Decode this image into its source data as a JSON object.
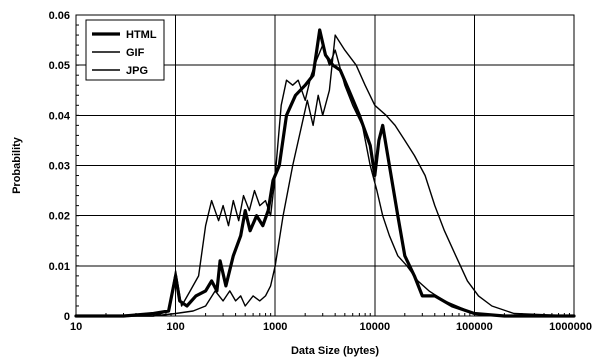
{
  "chart_data": {
    "type": "line",
    "title": "",
    "xlabel": "Data Size (bytes)",
    "ylabel": "Probability",
    "x_scale": "log",
    "xlim": [
      10,
      1000000
    ],
    "ylim": [
      0,
      0.06
    ],
    "x_ticks": [
      "10",
      "100",
      "1000",
      "10000",
      "100000",
      "1000000"
    ],
    "y_ticks": [
      "0",
      "0.01",
      "0.02",
      "0.03",
      "0.04",
      "0.05",
      "0.06"
    ],
    "grid": true,
    "legend_position": "top-left",
    "series": [
      {
        "name": "HTML",
        "style": "thick",
        "points": [
          [
            10,
            0
          ],
          [
            30,
            0
          ],
          [
            60,
            0.0005
          ],
          [
            85,
            0.001
          ],
          [
            100,
            0.008
          ],
          [
            110,
            0.003
          ],
          [
            130,
            0.002
          ],
          [
            160,
            0.004
          ],
          [
            200,
            0.005
          ],
          [
            230,
            0.007
          ],
          [
            260,
            0.005
          ],
          [
            280,
            0.011
          ],
          [
            320,
            0.006
          ],
          [
            380,
            0.012
          ],
          [
            450,
            0.016
          ],
          [
            500,
            0.021
          ],
          [
            560,
            0.017
          ],
          [
            650,
            0.02
          ],
          [
            750,
            0.018
          ],
          [
            850,
            0.021
          ],
          [
            950,
            0.027
          ],
          [
            1100,
            0.03
          ],
          [
            1300,
            0.04
          ],
          [
            1600,
            0.044
          ],
          [
            2000,
            0.046
          ],
          [
            2400,
            0.048
          ],
          [
            2800,
            0.057
          ],
          [
            3200,
            0.052
          ],
          [
            3800,
            0.05
          ],
          [
            4500,
            0.049
          ],
          [
            5500,
            0.045
          ],
          [
            7000,
            0.04
          ],
          [
            9000,
            0.034
          ],
          [
            10000,
            0.028
          ],
          [
            11000,
            0.035
          ],
          [
            12000,
            0.038
          ],
          [
            14000,
            0.03
          ],
          [
            17000,
            0.02
          ],
          [
            20000,
            0.012
          ],
          [
            25000,
            0.008
          ],
          [
            30000,
            0.004
          ],
          [
            40000,
            0.004
          ],
          [
            60000,
            0.002
          ],
          [
            100000,
            0.0005
          ],
          [
            200000,
            0
          ],
          [
            1000000,
            0
          ]
        ]
      },
      {
        "name": "GIF",
        "style": "thin",
        "points": [
          [
            10,
            0
          ],
          [
            30,
            0
          ],
          [
            60,
            0
          ],
          [
            85,
            0.001
          ],
          [
            100,
            0.009
          ],
          [
            115,
            0.002
          ],
          [
            140,
            0.005
          ],
          [
            170,
            0.008
          ],
          [
            200,
            0.018
          ],
          [
            230,
            0.023
          ],
          [
            270,
            0.019
          ],
          [
            300,
            0.022
          ],
          [
            340,
            0.018
          ],
          [
            380,
            0.023
          ],
          [
            430,
            0.019
          ],
          [
            480,
            0.024
          ],
          [
            550,
            0.021
          ],
          [
            620,
            0.025
          ],
          [
            700,
            0.022
          ],
          [
            800,
            0.023
          ],
          [
            900,
            0.02
          ],
          [
            1000,
            0.028
          ],
          [
            1150,
            0.042
          ],
          [
            1300,
            0.047
          ],
          [
            1500,
            0.046
          ],
          [
            1700,
            0.047
          ],
          [
            2000,
            0.043
          ],
          [
            2300,
            0.048
          ],
          [
            2600,
            0.051
          ],
          [
            3000,
            0.054
          ],
          [
            3500,
            0.05
          ],
          [
            4000,
            0.053
          ],
          [
            5000,
            0.046
          ],
          [
            6000,
            0.042
          ],
          [
            7500,
            0.038
          ],
          [
            9000,
            0.03
          ],
          [
            10500,
            0.025
          ],
          [
            12000,
            0.02
          ],
          [
            14000,
            0.016
          ],
          [
            17000,
            0.012
          ],
          [
            21000,
            0.01
          ],
          [
            27000,
            0.007
          ],
          [
            35000,
            0.005
          ],
          [
            50000,
            0.003
          ],
          [
            100000,
            0.0005
          ],
          [
            200000,
            0
          ],
          [
            1000000,
            0
          ]
        ]
      },
      {
        "name": "JPG",
        "style": "thin",
        "points": [
          [
            10,
            0
          ],
          [
            60,
            0
          ],
          [
            100,
            0.0005
          ],
          [
            150,
            0.001
          ],
          [
            200,
            0.002
          ],
          [
            250,
            0.005
          ],
          [
            300,
            0.003
          ],
          [
            350,
            0.005
          ],
          [
            400,
            0.003
          ],
          [
            450,
            0.004
          ],
          [
            500,
            0.002
          ],
          [
            600,
            0.004
          ],
          [
            700,
            0.003
          ],
          [
            800,
            0.004
          ],
          [
            900,
            0.006
          ],
          [
            1000,
            0.01
          ],
          [
            1200,
            0.02
          ],
          [
            1500,
            0.03
          ],
          [
            1800,
            0.037
          ],
          [
            2100,
            0.043
          ],
          [
            2400,
            0.038
          ],
          [
            2700,
            0.044
          ],
          [
            3000,
            0.04
          ],
          [
            3500,
            0.045
          ],
          [
            4000,
            0.056
          ],
          [
            5000,
            0.053
          ],
          [
            6500,
            0.05
          ],
          [
            8000,
            0.046
          ],
          [
            10000,
            0.042
          ],
          [
            13000,
            0.04
          ],
          [
            16000,
            0.038
          ],
          [
            20000,
            0.035
          ],
          [
            25000,
            0.032
          ],
          [
            32000,
            0.028
          ],
          [
            40000,
            0.022
          ],
          [
            50000,
            0.017
          ],
          [
            65000,
            0.012
          ],
          [
            85000,
            0.007
          ],
          [
            110000,
            0.004
          ],
          [
            150000,
            0.002
          ],
          [
            250000,
            0.0005
          ],
          [
            1000000,
            0
          ]
        ]
      }
    ]
  }
}
